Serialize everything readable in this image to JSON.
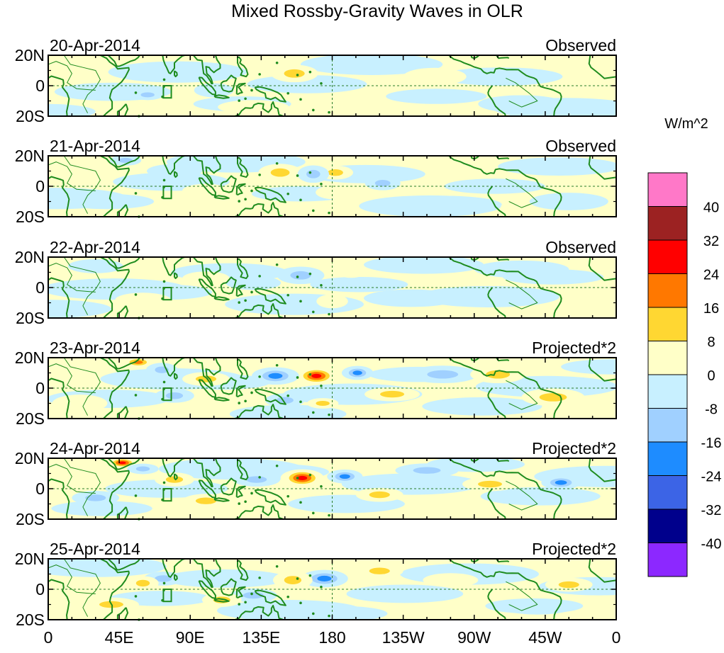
{
  "chart_data": {
    "type": "heatmap",
    "title": "Mixed Rossby-Gravity Waves in OLR",
    "units": "W/m^2",
    "x_tick_labels": [
      "0",
      "45E",
      "90E",
      "135E",
      "180",
      "135W",
      "90W",
      "45W",
      "0"
    ],
    "x_ticks_deg": [
      0,
      45,
      90,
      135,
      180,
      225,
      270,
      315,
      360
    ],
    "y_tick_labels": [
      "20N",
      "0",
      "20S"
    ],
    "y_ticks_deg": [
      20,
      0,
      -20
    ],
    "xlim": [
      0,
      360
    ],
    "ylim": [
      -20,
      20
    ],
    "contour_levels": [
      -40,
      -32,
      -24,
      -16,
      -8,
      0,
      8,
      16,
      24,
      32,
      40
    ],
    "colorbar_labels": [
      "40",
      "32",
      "24",
      "16",
      "8",
      "0",
      "-8",
      "-16",
      "-24",
      "-32",
      "-40"
    ],
    "colorbar_colors": [
      "#ff78c8",
      "#9c2222",
      "#ff0000",
      "#ff7800",
      "#ffd732",
      "#ffffc8",
      "#c8f0ff",
      "#a0d0ff",
      "#1e8cff",
      "#3c64e6",
      "#00008c",
      "#8c28ff"
    ],
    "panels": [
      {
        "date": "20-Apr-2014",
        "label": "Observed",
        "anomalies": [
          {
            "lon": 25,
            "lat": 15,
            "value": 5,
            "rlon": 12,
            "rlat": 4
          },
          {
            "lon": 156,
            "lat": 8,
            "value": 11,
            "rlon": 12,
            "rlat": 5
          },
          {
            "lon": 63,
            "lat": -6,
            "value": -9,
            "rlon": 8,
            "rlat": 3
          },
          {
            "lon": 105,
            "lat": -3,
            "value": -6,
            "rlon": 10,
            "rlat": 4
          },
          {
            "lon": 205,
            "lat": 13,
            "value": -7,
            "rlon": 14,
            "rlat": 5
          },
          {
            "lon": 245,
            "lat": 6,
            "value": 5,
            "rlon": 16,
            "rlat": 5
          },
          {
            "lon": 300,
            "lat": -12,
            "value": -7,
            "rlon": 22,
            "rlat": 5
          },
          {
            "lon": 340,
            "lat": 12,
            "value": 4,
            "rlon": 18,
            "rlat": 4
          },
          {
            "lon": 130,
            "lat": -14,
            "value": 4,
            "rlon": 18,
            "rlat": 4
          }
        ]
      },
      {
        "date": "21-Apr-2014",
        "label": "Observed",
        "anomalies": [
          {
            "lon": 147,
            "lat": 9,
            "value": 12,
            "rlon": 11,
            "rlat": 5
          },
          {
            "lon": 182,
            "lat": 9,
            "value": 9,
            "rlon": 9,
            "rlat": 4
          },
          {
            "lon": 168,
            "lat": 8,
            "value": -9,
            "rlon": 8,
            "rlat": 5
          },
          {
            "lon": 212,
            "lat": 2,
            "value": -9,
            "rlon": 9,
            "rlat": 4
          },
          {
            "lon": 49,
            "lat": 17,
            "value": -9,
            "rlon": 8,
            "rlat": 3
          },
          {
            "lon": 182,
            "lat": -4,
            "value": 7,
            "rlon": 10,
            "rlat": 4
          },
          {
            "lon": 100,
            "lat": -3,
            "value": 5,
            "rlon": 12,
            "rlat": 4
          },
          {
            "lon": 80,
            "lat": 10,
            "value": -6,
            "rlon": 14,
            "rlat": 4
          },
          {
            "lon": 250,
            "lat": -12,
            "value": -6,
            "rlon": 30,
            "rlat": 5
          },
          {
            "lon": 330,
            "lat": -10,
            "value": -6,
            "rlon": 20,
            "rlat": 5
          }
        ]
      },
      {
        "date": "22-Apr-2014",
        "label": "Observed",
        "anomalies": [
          {
            "lon": 160,
            "lat": 8,
            "value": -12,
            "rlon": 12,
            "rlat": 5
          },
          {
            "lon": 192,
            "lat": 11,
            "value": 7,
            "rlon": 8,
            "rlat": 4
          },
          {
            "lon": 180,
            "lat": -9,
            "value": 7,
            "rlon": 8,
            "rlat": 4
          },
          {
            "lon": 130,
            "lat": 3,
            "value": -6,
            "rlon": 14,
            "rlat": 4
          },
          {
            "lon": 100,
            "lat": 6,
            "value": 5,
            "rlon": 12,
            "rlat": 4
          },
          {
            "lon": 30,
            "lat": 14,
            "value": -6,
            "rlon": 14,
            "rlat": 4
          },
          {
            "lon": 230,
            "lat": -7,
            "value": -6,
            "rlon": 24,
            "rlat": 5
          },
          {
            "lon": 300,
            "lat": 12,
            "value": -6,
            "rlon": 24,
            "rlat": 5
          },
          {
            "lon": 60,
            "lat": -8,
            "value": 5,
            "rlon": 14,
            "rlat": 4
          }
        ]
      },
      {
        "date": "23-Apr-2014",
        "label": "Projected*2",
        "anomalies": [
          {
            "lon": 170,
            "lat": 8,
            "value": 28,
            "rlon": 11,
            "rlat": 5
          },
          {
            "lon": 144,
            "lat": 8,
            "value": -24,
            "rlon": 12,
            "rlat": 5
          },
          {
            "lon": 196,
            "lat": 10,
            "value": -18,
            "rlon": 8,
            "rlat": 4
          },
          {
            "lon": 57,
            "lat": 17,
            "value": 18,
            "rlon": 8,
            "rlat": 3
          },
          {
            "lon": 72,
            "lat": 12,
            "value": -12,
            "rlon": 8,
            "rlat": 4
          },
          {
            "lon": 174,
            "lat": -10,
            "value": 16,
            "rlon": 8,
            "rlat": 3
          },
          {
            "lon": 150,
            "lat": -8,
            "value": -10,
            "rlon": 10,
            "rlat": 4
          },
          {
            "lon": 100,
            "lat": 6,
            "value": 10,
            "rlon": 12,
            "rlat": 4
          },
          {
            "lon": 218,
            "lat": -4,
            "value": 9,
            "rlon": 14,
            "rlat": 4
          },
          {
            "lon": 250,
            "lat": 9,
            "value": -14,
            "rlon": 18,
            "rlat": 5
          },
          {
            "lon": 285,
            "lat": 9,
            "value": 10,
            "rlon": 14,
            "rlat": 5
          },
          {
            "lon": 320,
            "lat": -6,
            "value": 10,
            "rlon": 16,
            "rlat": 5
          },
          {
            "lon": 80,
            "lat": -5,
            "value": -10,
            "rlon": 10,
            "rlat": 4
          },
          {
            "lon": 20,
            "lat": -10,
            "value": 8,
            "rlon": 14,
            "rlat": 5
          }
        ]
      },
      {
        "date": "24-Apr-2014",
        "label": "Projected*2",
        "anomalies": [
          {
            "lon": 161,
            "lat": 7,
            "value": 30,
            "rlon": 11,
            "rlat": 5
          },
          {
            "lon": 188,
            "lat": 8,
            "value": -24,
            "rlon": 9,
            "rlat": 4
          },
          {
            "lon": 132,
            "lat": 6,
            "value": -12,
            "rlon": 12,
            "rlat": 4
          },
          {
            "lon": 47,
            "lat": 17,
            "value": 28,
            "rlon": 8,
            "rlat": 3
          },
          {
            "lon": 60,
            "lat": 13,
            "value": -12,
            "rlon": 8,
            "rlat": 3
          },
          {
            "lon": 210,
            "lat": -4,
            "value": 10,
            "rlon": 12,
            "rlat": 4
          },
          {
            "lon": 325,
            "lat": 4,
            "value": -22,
            "rlon": 10,
            "rlat": 4
          },
          {
            "lon": 280,
            "lat": 3,
            "value": 10,
            "rlon": 14,
            "rlat": 4
          },
          {
            "lon": 100,
            "lat": -8,
            "value": 9,
            "rlon": 12,
            "rlat": 4
          },
          {
            "lon": 80,
            "lat": 6,
            "value": 9,
            "rlon": 10,
            "rlat": 4
          },
          {
            "lon": 240,
            "lat": 12,
            "value": -9,
            "rlon": 16,
            "rlat": 4
          },
          {
            "lon": 30,
            "lat": -6,
            "value": -9,
            "rlon": 12,
            "rlat": 4
          }
        ]
      },
      {
        "date": "25-Apr-2014",
        "label": "Projected*2",
        "anomalies": [
          {
            "lon": 175,
            "lat": 7,
            "value": -20,
            "rlon": 12,
            "rlat": 5
          },
          {
            "lon": 155,
            "lat": 6,
            "value": 14,
            "rlon": 10,
            "rlat": 5
          },
          {
            "lon": 210,
            "lat": 12,
            "value": 10,
            "rlon": 12,
            "rlat": 4
          },
          {
            "lon": 73,
            "lat": 7,
            "value": -10,
            "rlon": 10,
            "rlat": 4
          },
          {
            "lon": 60,
            "lat": 4,
            "value": 10,
            "rlon": 8,
            "rlat": 4
          },
          {
            "lon": 130,
            "lat": -4,
            "value": -10,
            "rlon": 12,
            "rlat": 4
          },
          {
            "lon": 110,
            "lat": -7,
            "value": 10,
            "rlon": 10,
            "rlat": 4
          },
          {
            "lon": 230,
            "lat": -2,
            "value": -8,
            "rlon": 12,
            "rlat": 4
          },
          {
            "lon": 255,
            "lat": 6,
            "value": 8,
            "rlon": 14,
            "rlat": 4
          },
          {
            "lon": 330,
            "lat": 3,
            "value": 9,
            "rlon": 12,
            "rlat": 4
          },
          {
            "lon": 40,
            "lat": -10,
            "value": 10,
            "rlon": 14,
            "rlat": 4
          },
          {
            "lon": 310,
            "lat": -12,
            "value": -8,
            "rlon": 18,
            "rlat": 4
          }
        ]
      }
    ]
  }
}
